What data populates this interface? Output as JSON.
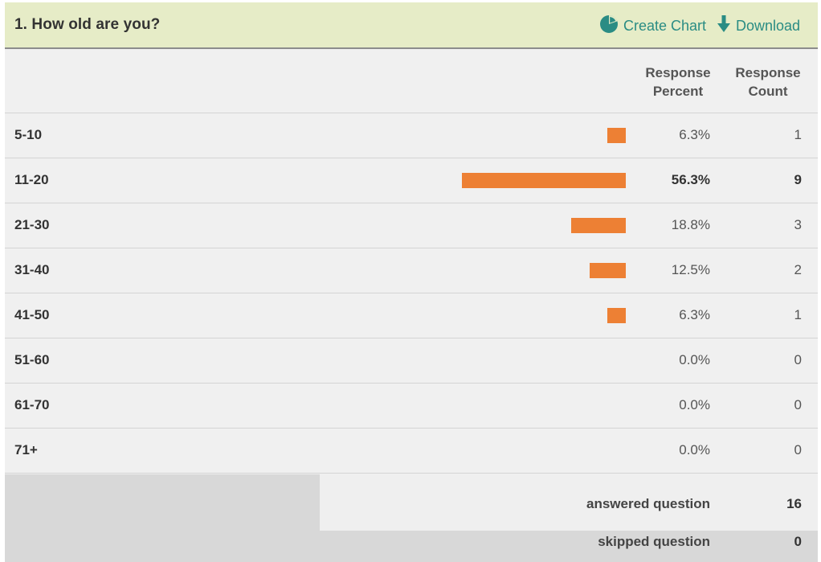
{
  "question": {
    "title": "1. How old are you?"
  },
  "actions": {
    "create_chart": "Create Chart",
    "download": "Download"
  },
  "columns": {
    "percent_line1": "Response",
    "percent_line2": "Percent",
    "count_line1": "Response",
    "count_line2": "Count"
  },
  "rows": [
    {
      "label": "5-10",
      "percent": "6.3%",
      "count": "1",
      "value": 6.3
    },
    {
      "label": "11-20",
      "percent": "56.3%",
      "count": "9",
      "value": 56.3
    },
    {
      "label": "21-30",
      "percent": "18.8%",
      "count": "3",
      "value": 18.8
    },
    {
      "label": "31-40",
      "percent": "12.5%",
      "count": "2",
      "value": 12.5
    },
    {
      "label": "41-50",
      "percent": "6.3%",
      "count": "1",
      "value": 6.3
    },
    {
      "label": "51-60",
      "percent": "0.0%",
      "count": "0",
      "value": 0
    },
    {
      "label": "61-70",
      "percent": "0.0%",
      "count": "0",
      "value": 0
    },
    {
      "label": "71+",
      "percent": "0.0%",
      "count": "0",
      "value": 0
    }
  ],
  "summary": {
    "answered_label": "answered question",
    "answered_value": "16",
    "skipped_label": "skipped question",
    "skipped_value": "0"
  },
  "colors": {
    "bar": "#ed8034",
    "header_bg": "#e6ecc7",
    "accent": "#2a8c84"
  },
  "icons": {
    "create_chart": "pie-chart-icon",
    "download": "down-arrow-icon"
  }
}
